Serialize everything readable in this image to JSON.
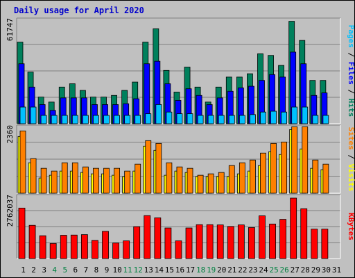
{
  "title": "Daily usage for April 2020",
  "colors": {
    "hits": "#00805c",
    "files": "#0000ff",
    "pages": "#00c0ff",
    "visits": "#ffff00",
    "sites": "#ff8000",
    "kbytes": "#ff0000",
    "weekend_day_label": "#008040",
    "weekday_label": "#000000",
    "panel_bg": "#c0c0c0",
    "gridline": "#808080"
  },
  "chart_data": [
    {
      "type": "bar",
      "panel": "hits-files-pages",
      "ylabel_parts": [
        "Pages",
        "Files",
        "Hits"
      ],
      "ymax_label": "61747",
      "ylim": [
        0,
        61747
      ],
      "x": [
        1,
        2,
        3,
        4,
        5,
        6,
        7,
        8,
        9,
        10,
        11,
        12,
        13,
        14,
        15,
        16,
        17,
        18,
        19,
        20,
        21,
        22,
        23,
        24,
        25,
        26,
        27,
        28,
        29,
        30,
        31
      ],
      "series": [
        {
          "name": "Hits",
          "values": [
            49000,
            31000,
            16000,
            13000,
            22000,
            24000,
            20000,
            16000,
            16000,
            17000,
            20000,
            25000,
            49000,
            57000,
            32000,
            19000,
            34000,
            22000,
            13000,
            22000,
            28000,
            28000,
            30000,
            42000,
            41000,
            35000,
            61500,
            50000,
            26000,
            26000,
            0
          ]
        },
        {
          "name": "Files",
          "values": [
            36000,
            22000,
            11500,
            8000,
            15500,
            15500,
            15500,
            11500,
            11500,
            11500,
            12000,
            15000,
            36000,
            37500,
            24000,
            14000,
            21000,
            17000,
            11500,
            15500,
            19500,
            21500,
            22500,
            26000,
            29500,
            28000,
            43000,
            36000,
            17000,
            18500,
            0
          ]
        },
        {
          "name": "Pages",
          "values": [
            10000,
            10000,
            5000,
            5000,
            5000,
            5000,
            5000,
            5000,
            5000,
            5000,
            5000,
            5000,
            6000,
            11500,
            7000,
            6000,
            6000,
            5000,
            5000,
            5000,
            5000,
            5000,
            5500,
            7000,
            7500,
            7000,
            10000,
            10000,
            5000,
            5000,
            0
          ]
        }
      ]
    },
    {
      "type": "bar",
      "panel": "visits-sites",
      "ylabel_parts": [
        "Sites",
        "Visits"
      ],
      "ymax_label": "2360",
      "ylim": [
        0,
        2360
      ],
      "x": [
        1,
        2,
        3,
        4,
        5,
        6,
        7,
        8,
        9,
        10,
        11,
        12,
        13,
        14,
        15,
        16,
        17,
        18,
        19,
        20,
        21,
        22,
        23,
        24,
        25,
        26,
        27,
        28,
        29,
        30,
        31
      ],
      "series": [
        {
          "name": "Visits",
          "values": [
            2050,
            1100,
            550,
            650,
            800,
            800,
            750,
            700,
            700,
            650,
            600,
            800,
            1700,
            1550,
            650,
            800,
            750,
            600,
            600,
            600,
            600,
            700,
            800,
            1000,
            1500,
            1400,
            2300,
            1600,
            900,
            850,
            0
          ]
        },
        {
          "name": "Sites",
          "values": [
            2250,
            1250,
            900,
            800,
            1100,
            1100,
            950,
            900,
            900,
            900,
            800,
            1050,
            1900,
            1800,
            1100,
            950,
            900,
            650,
            700,
            750,
            1000,
            1100,
            1200,
            1450,
            1800,
            1850,
            2400,
            2400,
            1200,
            1050,
            0
          ]
        }
      ]
    },
    {
      "type": "bar",
      "panel": "kbytes",
      "ylabel_parts": [
        "KBytes"
      ],
      "ymax_label": "2762037",
      "ylim": [
        0,
        2762037
      ],
      "x": [
        1,
        2,
        3,
        4,
        5,
        6,
        7,
        8,
        9,
        10,
        11,
        12,
        13,
        14,
        15,
        16,
        17,
        18,
        19,
        20,
        21,
        22,
        23,
        24,
        25,
        26,
        27,
        28,
        29,
        30,
        31
      ],
      "series": [
        {
          "name": "KBytes",
          "values": [
            2280000,
            1500000,
            1030000,
            680000,
            1050000,
            1060000,
            1080000,
            820000,
            1230000,
            700000,
            800000,
            1440000,
            1940000,
            1840000,
            1380000,
            800000,
            1380000,
            1530000,
            1530000,
            1520000,
            1450000,
            1520000,
            1400000,
            1930000,
            1560000,
            1770000,
            2730000,
            2250000,
            1330000,
            1330000,
            0
          ]
        }
      ]
    }
  ],
  "x_tick_labels": [
    "1",
    "2",
    "3",
    "4",
    "5",
    "6",
    "7",
    "8",
    "9",
    "10",
    "11",
    "12",
    "13",
    "14",
    "15",
    "16",
    "17",
    "18",
    "19",
    "20",
    "21",
    "22",
    "23",
    "24",
    "25",
    "26",
    "27",
    "28",
    "29",
    "30",
    "31"
  ],
  "weekend_days": [
    4,
    5,
    11,
    12,
    18,
    19,
    25,
    26
  ]
}
